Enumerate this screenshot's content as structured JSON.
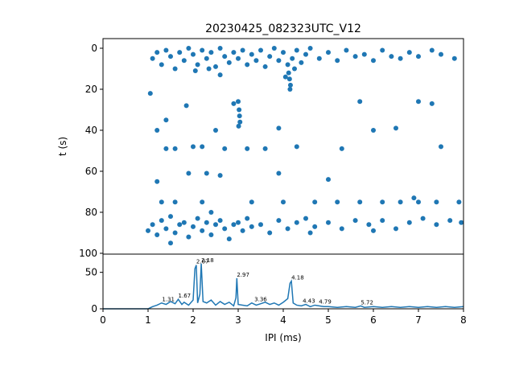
{
  "chart_data": [
    {
      "type": "scatter",
      "title": "20230425_082323UTC_V12",
      "ylabel": "t (s)",
      "color": "#1f77b4",
      "xlim": [
        0,
        8
      ],
      "ylim": [
        -4.7,
        100.4
      ],
      "y_inverted": true,
      "yticks": [
        0,
        20,
        40,
        60,
        80,
        100
      ],
      "points": [
        [
          1.1,
          5
        ],
        [
          1.2,
          2
        ],
        [
          1.3,
          8
        ],
        [
          1.4,
          1
        ],
        [
          1.5,
          4
        ],
        [
          1.6,
          10
        ],
        [
          1.7,
          2
        ],
        [
          1.8,
          6
        ],
        [
          1.9,
          0
        ],
        [
          2.0,
          3
        ],
        [
          2.1,
          8
        ],
        [
          2.2,
          1
        ],
        [
          2.3,
          5
        ],
        [
          2.4,
          2
        ],
        [
          2.5,
          9
        ],
        [
          2.6,
          0
        ],
        [
          2.7,
          4
        ],
        [
          2.8,
          7
        ],
        [
          2.9,
          2
        ],
        [
          3.0,
          5
        ],
        [
          3.1,
          1
        ],
        [
          3.2,
          8
        ],
        [
          3.3,
          3
        ],
        [
          3.4,
          6
        ],
        [
          3.5,
          1
        ],
        [
          3.6,
          9
        ],
        [
          3.7,
          4
        ],
        [
          3.8,
          0
        ],
        [
          3.9,
          6
        ],
        [
          4.0,
          2
        ],
        [
          4.2,
          5
        ],
        [
          4.3,
          1
        ],
        [
          4.4,
          7
        ],
        [
          4.5,
          3
        ],
        [
          4.6,
          0
        ],
        [
          4.8,
          5
        ],
        [
          5.0,
          2
        ],
        [
          5.2,
          6
        ],
        [
          5.4,
          1
        ],
        [
          5.6,
          4
        ],
        [
          5.8,
          3
        ],
        [
          6.0,
          6
        ],
        [
          6.2,
          1
        ],
        [
          6.4,
          4
        ],
        [
          6.6,
          5
        ],
        [
          6.8,
          2
        ],
        [
          7.0,
          4
        ],
        [
          7.3,
          1
        ],
        [
          7.5,
          3
        ],
        [
          7.8,
          5
        ],
        [
          2.05,
          11
        ],
        [
          2.35,
          10
        ],
        [
          1.05,
          22
        ],
        [
          2.6,
          13
        ],
        [
          4.1,
          8
        ],
        [
          4.12,
          12
        ],
        [
          4.14,
          15
        ],
        [
          4.16,
          18
        ],
        [
          4.15,
          20
        ],
        [
          4.05,
          14
        ],
        [
          4.25,
          10
        ],
        [
          3.0,
          26
        ],
        [
          3.02,
          30
        ],
        [
          3.03,
          33
        ],
        [
          3.04,
          36
        ],
        [
          3.01,
          38
        ],
        [
          2.9,
          27
        ],
        [
          1.2,
          40
        ],
        [
          1.4,
          35
        ],
        [
          1.85,
          28
        ],
        [
          2.5,
          40
        ],
        [
          3.9,
          39
        ],
        [
          5.7,
          26
        ],
        [
          6.0,
          40
        ],
        [
          6.5,
          39
        ],
        [
          7.0,
          26
        ],
        [
          7.3,
          27
        ],
        [
          1.4,
          49
        ],
        [
          1.6,
          49
        ],
        [
          2.0,
          48
        ],
        [
          2.2,
          48
        ],
        [
          2.7,
          49
        ],
        [
          3.2,
          49
        ],
        [
          3.6,
          49
        ],
        [
          4.3,
          48
        ],
        [
          5.3,
          49
        ],
        [
          7.5,
          48
        ],
        [
          1.2,
          65
        ],
        [
          1.9,
          61
        ],
        [
          2.3,
          61
        ],
        [
          2.6,
          62
        ],
        [
          3.9,
          61
        ],
        [
          5.0,
          64
        ],
        [
          1.3,
          75
        ],
        [
          1.6,
          75
        ],
        [
          2.2,
          75
        ],
        [
          3.3,
          75
        ],
        [
          4.0,
          75
        ],
        [
          4.7,
          75
        ],
        [
          5.2,
          75
        ],
        [
          5.7,
          75
        ],
        [
          6.2,
          75
        ],
        [
          6.6,
          75
        ],
        [
          7.0,
          75
        ],
        [
          7.4,
          75
        ],
        [
          7.9,
          75
        ],
        [
          6.9,
          73
        ],
        [
          1.0,
          89
        ],
        [
          1.1,
          86
        ],
        [
          1.2,
          91
        ],
        [
          1.3,
          84
        ],
        [
          1.4,
          88
        ],
        [
          1.5,
          82
        ],
        [
          1.6,
          90
        ],
        [
          1.7,
          86
        ],
        [
          1.8,
          85
        ],
        [
          1.9,
          92
        ],
        [
          2.0,
          87
        ],
        [
          2.1,
          83
        ],
        [
          2.2,
          89
        ],
        [
          2.3,
          85
        ],
        [
          2.4,
          91
        ],
        [
          2.5,
          86
        ],
        [
          2.6,
          84
        ],
        [
          2.7,
          88
        ],
        [
          2.8,
          93
        ],
        [
          2.9,
          86
        ],
        [
          3.0,
          85
        ],
        [
          3.1,
          89
        ],
        [
          3.2,
          83
        ],
        [
          3.3,
          87
        ],
        [
          3.5,
          86
        ],
        [
          3.7,
          90
        ],
        [
          3.9,
          84
        ],
        [
          4.1,
          88
        ],
        [
          4.3,
          85
        ],
        [
          4.5,
          83
        ],
        [
          4.7,
          87
        ],
        [
          5.0,
          85
        ],
        [
          5.3,
          88
        ],
        [
          5.6,
          84
        ],
        [
          5.9,
          86
        ],
        [
          6.2,
          84
        ],
        [
          6.5,
          88
        ],
        [
          6.8,
          85
        ],
        [
          7.1,
          83
        ],
        [
          7.4,
          86
        ],
        [
          7.7,
          84
        ],
        [
          7.95,
          85
        ],
        [
          1.5,
          95
        ],
        [
          2.4,
          80
        ],
        [
          4.6,
          90
        ],
        [
          6.0,
          89
        ]
      ]
    },
    {
      "type": "line",
      "xlabel": "IPI (ms)",
      "color": "#1f77b4",
      "xlim": [
        0,
        8
      ],
      "xticks": [
        0,
        1,
        2,
        3,
        4,
        5,
        6,
        7,
        8
      ],
      "ylim": [
        0,
        75
      ],
      "yticks": [
        0,
        50
      ],
      "x": [
        0,
        1.0,
        1.1,
        1.2,
        1.3,
        1.4,
        1.5,
        1.6,
        1.67,
        1.75,
        1.8,
        1.9,
        2.0,
        2.04,
        2.07,
        2.1,
        2.15,
        2.18,
        2.22,
        2.3,
        2.4,
        2.5,
        2.6,
        2.7,
        2.8,
        2.9,
        2.95,
        2.97,
        3.0,
        3.1,
        3.2,
        3.3,
        3.4,
        3.5,
        3.6,
        3.7,
        3.8,
        3.9,
        4.0,
        4.1,
        4.15,
        4.18,
        4.22,
        4.3,
        4.4,
        4.5,
        4.6,
        4.7,
        4.8,
        4.9,
        5.0,
        5.2,
        5.4,
        5.6,
        5.72,
        5.8,
        6.0,
        6.2,
        6.4,
        6.6,
        6.8,
        7.0,
        7.2,
        7.4,
        7.6,
        7.8,
        8.0
      ],
      "values": [
        0,
        0,
        3,
        5,
        8,
        6,
        10,
        7,
        13,
        6,
        9,
        5,
        12,
        55,
        60,
        8,
        20,
        62,
        10,
        8,
        12,
        5,
        10,
        6,
        9,
        4,
        15,
        42,
        6,
        5,
        4,
        8,
        5,
        7,
        9,
        6,
        8,
        5,
        9,
        14,
        35,
        38,
        8,
        5,
        4,
        6,
        3,
        5,
        4,
        3,
        3,
        2,
        3,
        2,
        4,
        2,
        3,
        2,
        3,
        2,
        3,
        2,
        3,
        2,
        3,
        2,
        3
      ],
      "annotations": [
        {
          "label": "1.31",
          "x": 1.31,
          "y": 8
        },
        {
          "label": "1.67",
          "x": 1.67,
          "y": 13
        },
        {
          "label": "2.07",
          "x": 2.07,
          "y": 60
        },
        {
          "label": "2.18",
          "x": 2.18,
          "y": 62
        },
        {
          "label": "2.97",
          "x": 2.97,
          "y": 42
        },
        {
          "label": "3.36",
          "x": 3.36,
          "y": 8
        },
        {
          "label": "4.18",
          "x": 4.18,
          "y": 38
        },
        {
          "label": "4.43",
          "x": 4.43,
          "y": 6
        },
        {
          "label": "4.79",
          "x": 4.79,
          "y": 5
        },
        {
          "label": "5.72",
          "x": 5.72,
          "y": 4
        }
      ]
    }
  ]
}
